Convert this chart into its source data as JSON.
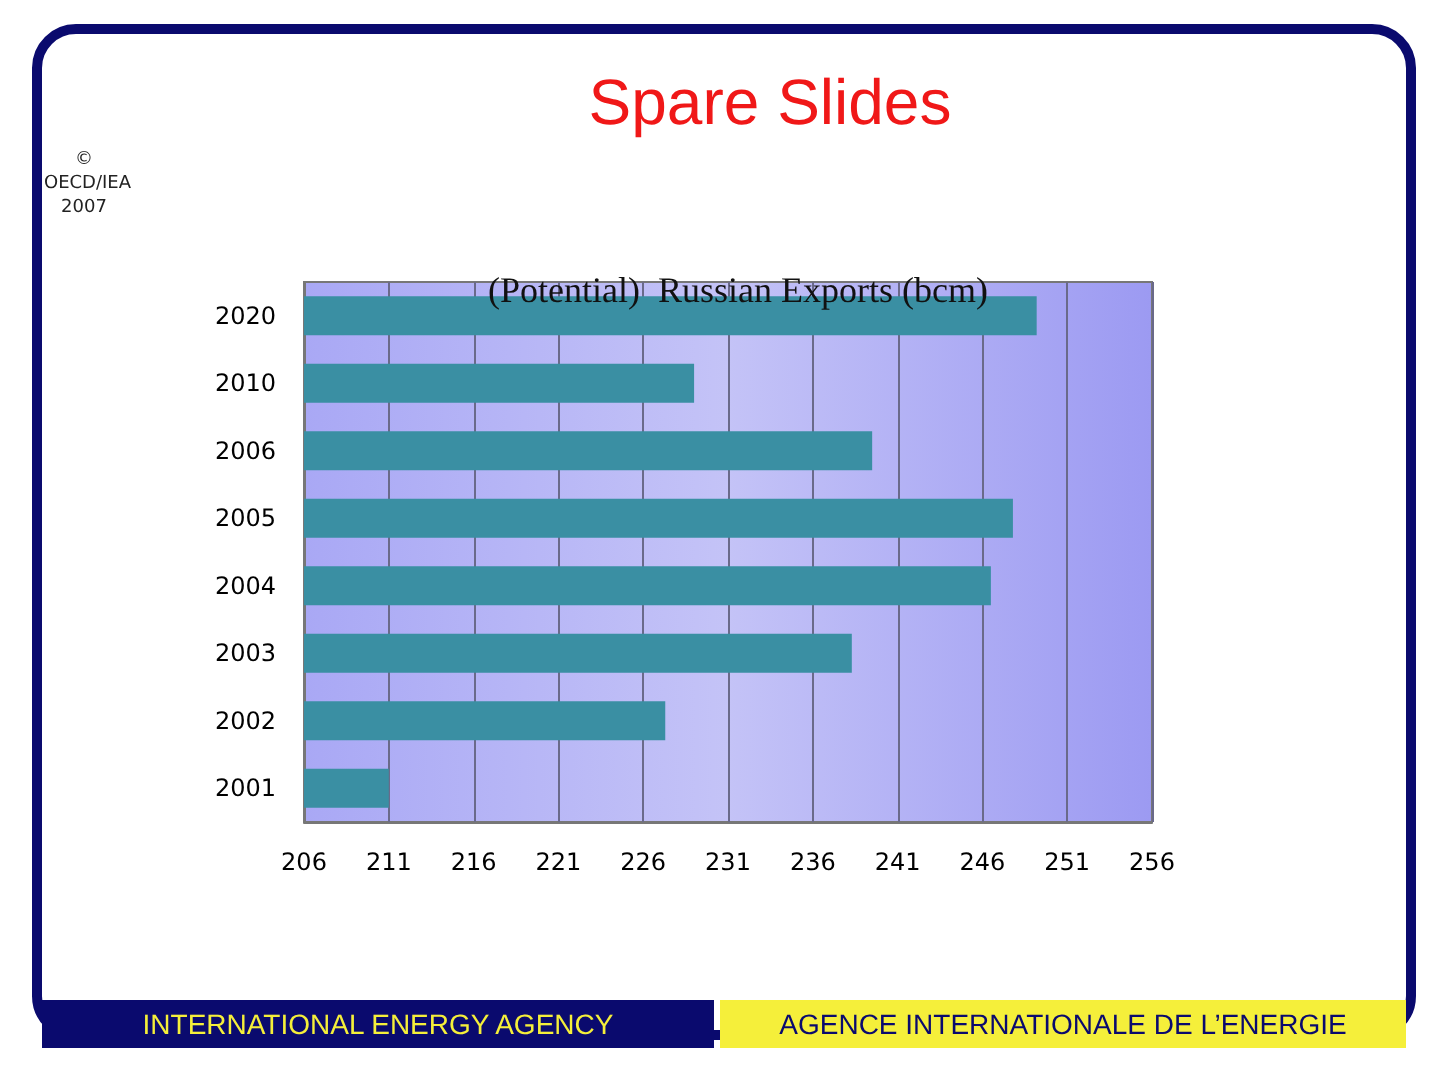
{
  "chart_data": {
    "type": "bar",
    "orientation": "horizontal",
    "title": "Spare Slides",
    "subtitle": "(Potential)  Russian Exports (bcm)",
    "categories": [
      "2020",
      "2010",
      "2006",
      "2005",
      "2004",
      "2003",
      "2002",
      "2001"
    ],
    "values": [
      249.2,
      229.0,
      239.5,
      247.8,
      246.5,
      238.3,
      227.3,
      211.0
    ],
    "color": "#3a8fa3",
    "xlim": [
      206,
      256
    ],
    "xticks": [
      206,
      211,
      216,
      221,
      226,
      231,
      236,
      241,
      246,
      251,
      256
    ],
    "grid": "x",
    "annotations": [
      "© OECD/IEA 2007",
      "INTERNATIONAL ENERGY AGENCY",
      "AGENCE INTERNATIONALE DE L’ENERGIE"
    ]
  }
}
